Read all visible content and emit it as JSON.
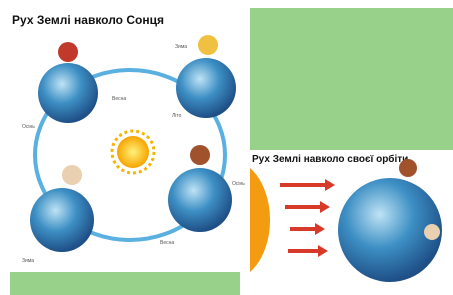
{
  "slides": [
    {
      "title": "Рух Землі навколо Сонця",
      "labels": [
        "Зима",
        "Весна",
        "Осінь",
        "Літо",
        "Осінь",
        "Весна",
        "Зима"
      ]
    },
    {
      "title": "Рух Землі навколо своєї орбіти"
    }
  ]
}
